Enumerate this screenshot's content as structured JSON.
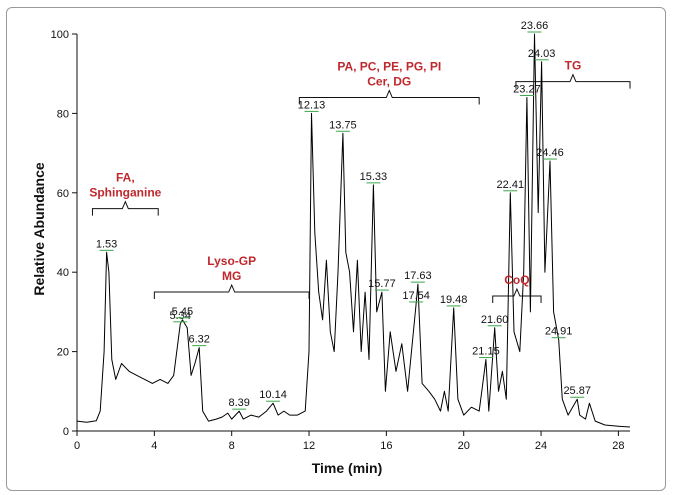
{
  "chart_data": {
    "type": "line",
    "xlabel": "Time (min)",
    "ylabel": "Relative Abundance",
    "xlim": [
      0,
      28.6
    ],
    "ylim": [
      0,
      100
    ],
    "x_ticks": [
      0,
      4,
      8,
      12,
      16,
      20,
      24,
      28
    ],
    "y_ticks": [
      0,
      20,
      40,
      60,
      80,
      100
    ],
    "grid": false,
    "series": [
      {
        "color": "#000000",
        "points": [
          [
            0,
            2.5
          ],
          [
            0.5,
            2.2
          ],
          [
            1.0,
            2.6
          ],
          [
            1.2,
            5
          ],
          [
            1.4,
            20
          ],
          [
            1.53,
            45
          ],
          [
            1.65,
            40
          ],
          [
            1.8,
            18
          ],
          [
            2.0,
            13
          ],
          [
            2.3,
            17
          ],
          [
            2.7,
            15
          ],
          [
            3.1,
            14
          ],
          [
            3.5,
            13
          ],
          [
            3.9,
            12
          ],
          [
            4.3,
            13
          ],
          [
            4.7,
            12
          ],
          [
            5.0,
            14
          ],
          [
            5.34,
            27
          ],
          [
            5.45,
            28
          ],
          [
            5.7,
            26
          ],
          [
            5.9,
            14
          ],
          [
            6.1,
            17
          ],
          [
            6.32,
            21
          ],
          [
            6.5,
            5
          ],
          [
            6.8,
            2.5
          ],
          [
            7.2,
            3
          ],
          [
            7.5,
            3.5
          ],
          [
            7.8,
            4.5
          ],
          [
            8.0,
            3
          ],
          [
            8.39,
            5
          ],
          [
            8.6,
            3
          ],
          [
            9.0,
            4
          ],
          [
            9.4,
            3.5
          ],
          [
            9.8,
            5
          ],
          [
            10.14,
            7
          ],
          [
            10.4,
            4
          ],
          [
            10.7,
            5
          ],
          [
            11.0,
            4
          ],
          [
            11.4,
            4
          ],
          [
            11.8,
            5
          ],
          [
            12.0,
            20
          ],
          [
            12.13,
            80
          ],
          [
            12.3,
            50
          ],
          [
            12.5,
            35
          ],
          [
            12.7,
            28
          ],
          [
            12.9,
            43
          ],
          [
            13.1,
            25
          ],
          [
            13.3,
            20
          ],
          [
            13.5,
            40
          ],
          [
            13.75,
            75
          ],
          [
            13.9,
            45
          ],
          [
            14.1,
            40
          ],
          [
            14.3,
            25
          ],
          [
            14.5,
            43
          ],
          [
            14.7,
            20
          ],
          [
            14.9,
            35
          ],
          [
            15.1,
            18
          ],
          [
            15.33,
            62
          ],
          [
            15.5,
            30
          ],
          [
            15.77,
            35
          ],
          [
            15.95,
            10
          ],
          [
            16.2,
            25
          ],
          [
            16.5,
            15
          ],
          [
            16.8,
            22
          ],
          [
            17.1,
            10
          ],
          [
            17.54,
            32
          ],
          [
            17.63,
            37
          ],
          [
            17.85,
            12
          ],
          [
            18.2,
            10
          ],
          [
            18.5,
            8
          ],
          [
            18.8,
            5
          ],
          [
            19.0,
            10
          ],
          [
            19.2,
            5
          ],
          [
            19.48,
            31
          ],
          [
            19.7,
            8
          ],
          [
            20.0,
            4
          ],
          [
            20.4,
            6
          ],
          [
            20.8,
            5
          ],
          [
            21.15,
            18
          ],
          [
            21.3,
            5
          ],
          [
            21.6,
            26
          ],
          [
            21.8,
            10
          ],
          [
            22.0,
            15
          ],
          [
            22.2,
            8
          ],
          [
            22.41,
            60
          ],
          [
            22.6,
            25
          ],
          [
            22.9,
            20
          ],
          [
            23.1,
            40
          ],
          [
            23.27,
            84
          ],
          [
            23.45,
            30
          ],
          [
            23.66,
            100
          ],
          [
            23.85,
            55
          ],
          [
            24.03,
            93
          ],
          [
            24.2,
            40
          ],
          [
            24.46,
            68
          ],
          [
            24.65,
            30
          ],
          [
            24.91,
            23
          ],
          [
            25.1,
            8
          ],
          [
            25.4,
            4
          ],
          [
            25.87,
            8
          ],
          [
            26.0,
            4
          ],
          [
            26.3,
            3
          ],
          [
            26.5,
            7
          ],
          [
            26.8,
            2.5
          ],
          [
            27.3,
            1.5
          ],
          [
            28.0,
            1.2
          ],
          [
            28.6,
            1
          ]
        ]
      }
    ],
    "peak_labels": [
      {
        "text": "1.53",
        "x": 1.53,
        "y": 45
      },
      {
        "text": "5.34",
        "x": 5.34,
        "y": 27
      },
      {
        "text": "5.45",
        "x": 5.45,
        "y": 28
      },
      {
        "text": "6.32",
        "x": 6.32,
        "y": 21
      },
      {
        "text": "8.39",
        "x": 8.39,
        "y": 5
      },
      {
        "text": "10.14",
        "x": 10.14,
        "y": 7
      },
      {
        "text": "12.13",
        "x": 12.13,
        "y": 80
      },
      {
        "text": "13.75",
        "x": 13.75,
        "y": 75
      },
      {
        "text": "15.33",
        "x": 15.33,
        "y": 62
      },
      {
        "text": "15.77",
        "x": 15.77,
        "y": 35
      },
      {
        "text": "17.63",
        "x": 17.63,
        "y": 37
      },
      {
        "text": "17.54",
        "x": 17.54,
        "y": 32
      },
      {
        "text": "19.48",
        "x": 19.48,
        "y": 31
      },
      {
        "text": "21.60",
        "x": 21.6,
        "y": 26
      },
      {
        "text": "21.15",
        "x": 21.15,
        "y": 18
      },
      {
        "text": "22.41",
        "x": 22.41,
        "y": 60
      },
      {
        "text": "23.27",
        "x": 23.27,
        "y": 84
      },
      {
        "text": "23.66",
        "x": 23.66,
        "y": 100
      },
      {
        "text": "24.03",
        "x": 24.03,
        "y": 93
      },
      {
        "text": "24.46",
        "x": 24.46,
        "y": 68
      },
      {
        "text": "24.91",
        "x": 24.91,
        "y": 23
      },
      {
        "text": "25.87",
        "x": 25.87,
        "y": 8
      }
    ],
    "group_labels": [
      {
        "lines": [
          "FA,",
          "Sphinganine"
        ],
        "x_range": [
          0.8,
          4.2
        ],
        "y": 56
      },
      {
        "lines": [
          "Lyso-GP",
          "MG"
        ],
        "x_range": [
          4.0,
          12.0
        ],
        "y": 35
      },
      {
        "lines": [
          "PA, PC, PE, PG, PI",
          "Cer, DG"
        ],
        "x_range": [
          11.5,
          20.8
        ],
        "y": 84
      },
      {
        "lines": [
          "CoQ"
        ],
        "x_range": [
          21.5,
          24.0
        ],
        "y": 34
      },
      {
        "lines": [
          "TG"
        ],
        "x_range": [
          22.7,
          28.6
        ],
        "y": 88
      }
    ],
    "annotation_color": "#c0282d",
    "marker_color": "#3aa64a"
  }
}
